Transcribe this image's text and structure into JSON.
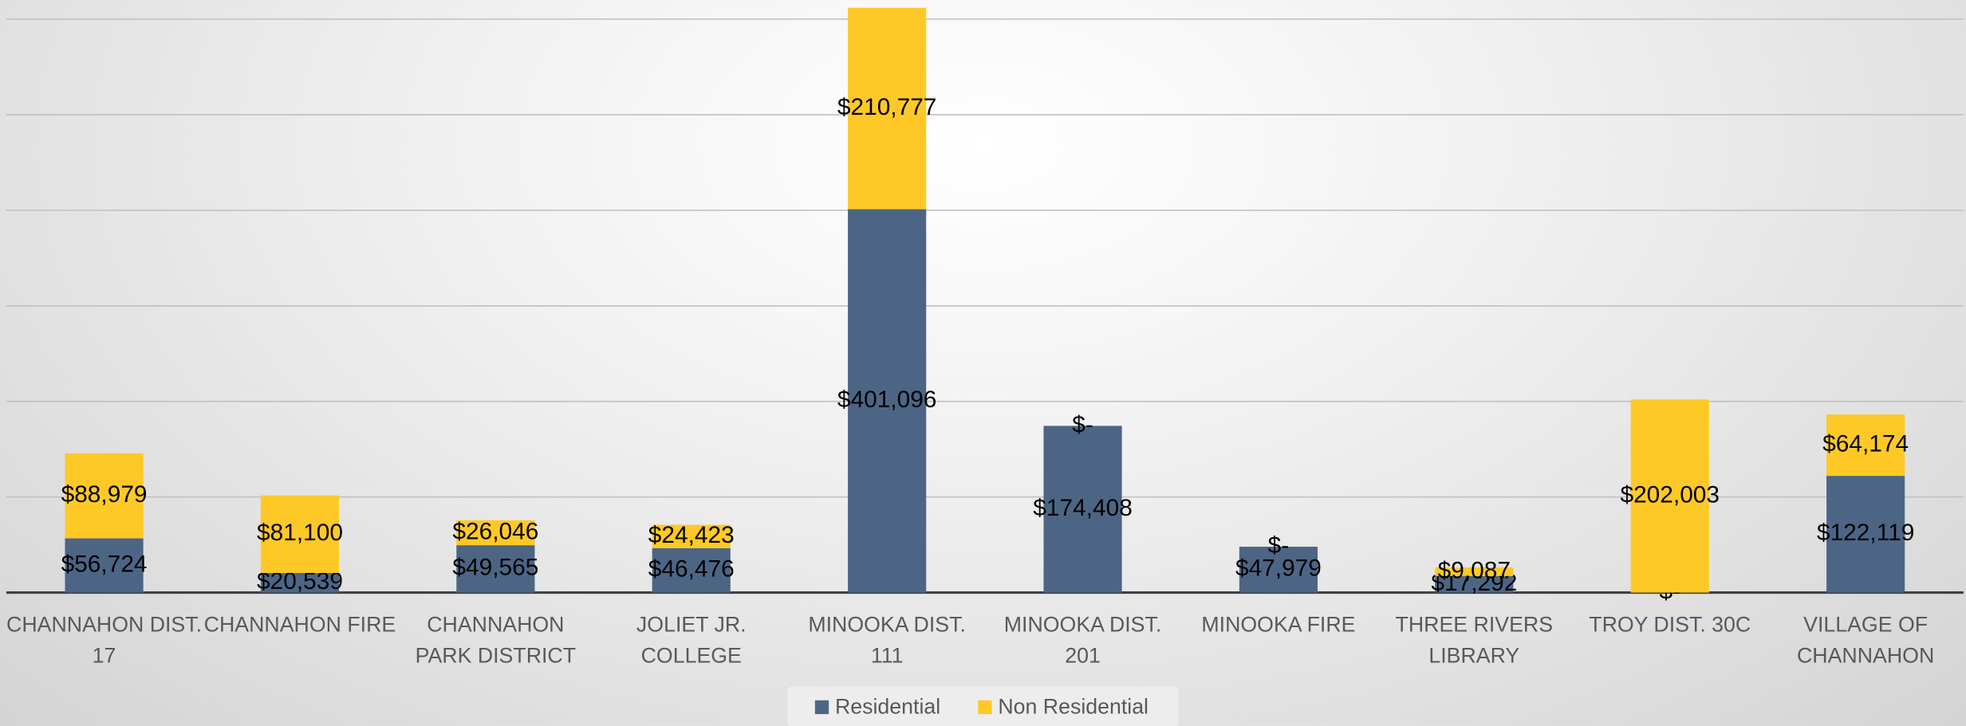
{
  "chart_data": {
    "type": "stacked_bar",
    "categories": [
      "CHANNAHON DIST. 17",
      "CHANNAHON FIRE",
      "CHANNAHON PARK DISTRICT",
      "JOLIET JR. COLLEGE",
      "MINOOKA DIST. 111",
      "MINOOKA DIST. 201",
      "MINOOKA FIRE",
      "THREE RIVERS LIBRARY",
      "TROY DIST. 30C",
      "VILLAGE OF CHANNAHON"
    ],
    "series": [
      {
        "name": "Residential",
        "color": "#4d6585",
        "values": [
          56724,
          20539,
          49565,
          46476,
          401096,
          174408,
          47979,
          17292,
          0,
          122119
        ],
        "value_labels": [
          "$56,724",
          "$20,539",
          "$49,565",
          "$46,476",
          "$401,096",
          "$174,408",
          "$47,979",
          "$17,292",
          "$-",
          "$122,119"
        ]
      },
      {
        "name": "Non Residential",
        "color": "#fec927",
        "values": [
          88979,
          81100,
          26046,
          24423,
          210777,
          0,
          0,
          9087,
          202003,
          64174
        ],
        "value_labels": [
          "$88,979",
          "$81,100",
          "$26,046",
          "$24,423",
          "$210,777",
          "$-",
          "$-",
          "$9,087",
          "$202,003",
          "$64,174"
        ]
      }
    ],
    "ylim": [
      0,
      620000
    ],
    "yticks": [
      0,
      100000,
      200000,
      300000,
      400000,
      500000,
      600000
    ],
    "grid": true
  }
}
